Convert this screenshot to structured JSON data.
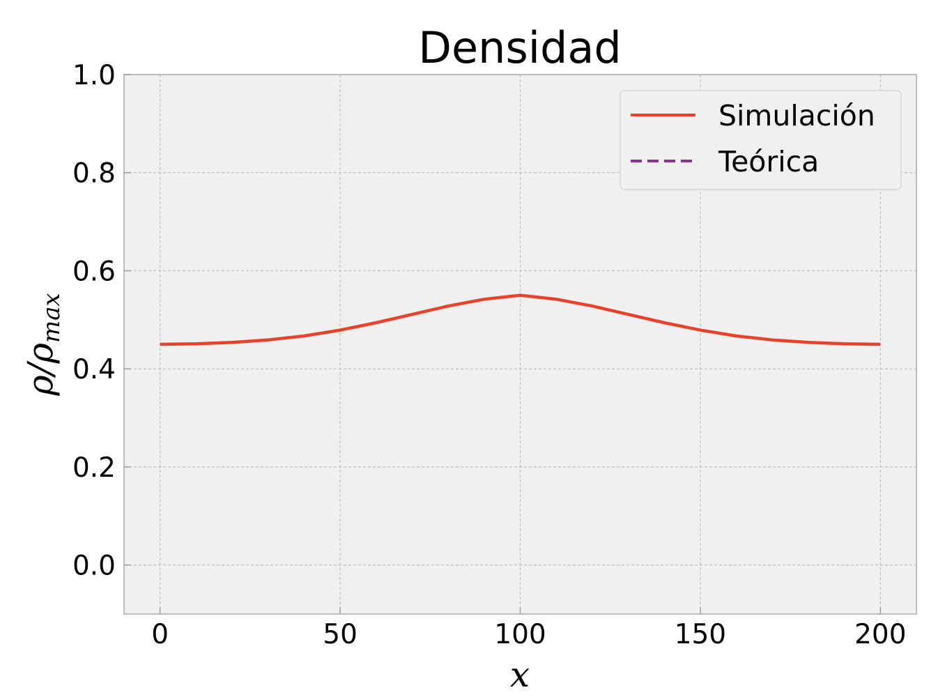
{
  "chart_data": {
    "type": "line",
    "title": "Densidad",
    "xlabel": "x",
    "ylabel": {
      "base": "ρ/ρ",
      "sub": "max"
    },
    "xlim": [
      -10,
      210
    ],
    "ylim": [
      -0.1,
      1.0
    ],
    "xticks": [
      0,
      50,
      100,
      150,
      200
    ],
    "yticks": [
      0.0,
      0.2,
      0.4,
      0.6,
      0.8,
      1.0
    ],
    "xtick_labels": [
      "0",
      "50",
      "100",
      "150",
      "200"
    ],
    "ytick_labels": [
      "0.0",
      "0.2",
      "0.4",
      "0.6",
      "0.8",
      "1.0"
    ],
    "grid": true,
    "legend_position": "top-right",
    "series": [
      {
        "name": "Simulación",
        "style": "solid",
        "color": "#e8432a",
        "x": [
          0,
          10,
          20,
          30,
          40,
          50,
          60,
          70,
          80,
          90,
          100,
          110,
          120,
          130,
          140,
          150,
          160,
          170,
          180,
          190,
          200
        ],
        "y": [
          0.45,
          0.451,
          0.454,
          0.459,
          0.467,
          0.479,
          0.494,
          0.511,
          0.528,
          0.542,
          0.55,
          0.542,
          0.528,
          0.511,
          0.494,
          0.479,
          0.467,
          0.459,
          0.454,
          0.451,
          0.45
        ]
      },
      {
        "name": "Teórica",
        "style": "dashed",
        "color": "#8b2f8f",
        "x": [],
        "y": []
      }
    ]
  }
}
